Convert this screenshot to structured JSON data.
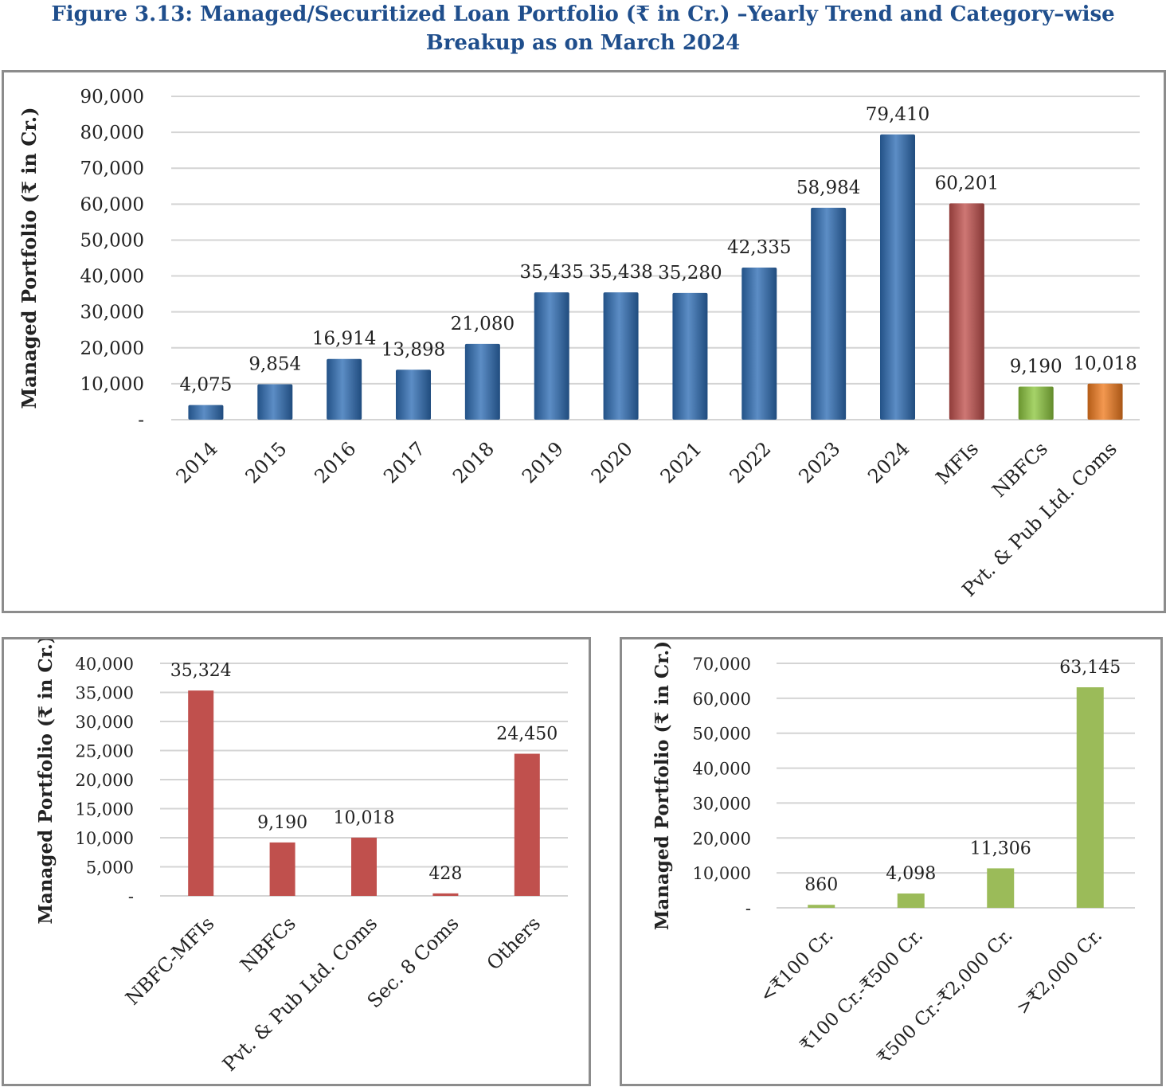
{
  "figure_title": "Figure 3.13: Managed/Securitized Loan Portfolio (₹ in Cr.) –Yearly Trend and Category–wise Breakup as on March 2024",
  "chart_data": [
    {
      "type": "bar",
      "ylabel": "Managed Portfolio (₹ in Cr.)",
      "ylim": [
        0,
        90000
      ],
      "yticks": [
        "-",
        "10,000",
        "20,000",
        "30,000",
        "40,000",
        "50,000",
        "60,000",
        "70,000",
        "80,000",
        "90,000"
      ],
      "categories": [
        "2014",
        "2015",
        "2016",
        "2017",
        "2018",
        "2019",
        "2020",
        "2021",
        "2022",
        "2023",
        "2024",
        "MFIs",
        "NBFCs",
        "Pvt. & Pub Ltd. Coms"
      ],
      "values": [
        4075,
        9854,
        16914,
        13898,
        21080,
        35435,
        35438,
        35280,
        42335,
        58984,
        79410,
        60201,
        9190,
        10018
      ],
      "value_labels": [
        "4,075",
        "9,854",
        "16,914",
        "13,898",
        "21,080",
        "35,435",
        "35,438",
        "35,280",
        "42,335",
        "58,984",
        "79,410",
        "60,201",
        "9,190",
        "10,018"
      ],
      "colors": [
        "#2e6db4",
        "#2e6db4",
        "#2e6db4",
        "#2e6db4",
        "#2e6db4",
        "#2e6db4",
        "#2e6db4",
        "#2e6db4",
        "#2e6db4",
        "#2e6db4",
        "#2e6db4",
        "#c0504d",
        "#8dc63f",
        "#f07b1f"
      ],
      "grid": true
    },
    {
      "type": "bar",
      "ylabel": "Managed Portfolio (₹ in Cr.)",
      "ylim": [
        0,
        40000
      ],
      "yticks": [
        "-",
        "5,000",
        "10,000",
        "15,000",
        "20,000",
        "25,000",
        "30,000",
        "35,000",
        "40,000"
      ],
      "categories": [
        "NBFC-MFIs",
        "NBFCs",
        "Pvt. & Pub Ltd. Coms",
        "Sec. 8 Coms",
        "Others"
      ],
      "values": [
        35324,
        9190,
        10018,
        428,
        24450
      ],
      "value_labels": [
        "35,324",
        "9,190",
        "10,018",
        "428",
        "24,450"
      ],
      "colors": [
        "#c0504d",
        "#c0504d",
        "#c0504d",
        "#c0504d",
        "#c0504d"
      ],
      "grid": true
    },
    {
      "type": "bar",
      "ylabel": "Managed Portfolio (₹ in Cr.)",
      "ylim": [
        0,
        70000
      ],
      "yticks": [
        "-",
        "10,000",
        "20,000",
        "30,000",
        "40,000",
        "50,000",
        "60,000",
        "70,000"
      ],
      "categories": [
        "<₹100 Cr.",
        "₹100 Cr.-₹500 Cr.",
        "₹500 Cr.-₹2,000 Cr.",
        ">₹2,000 Cr."
      ],
      "values": [
        860,
        4098,
        11306,
        63145
      ],
      "value_labels": [
        "860",
        "4,098",
        "11,306",
        "63,145"
      ],
      "colors": [
        "#9bbb59",
        "#9bbb59",
        "#9bbb59",
        "#9bbb59"
      ],
      "grid": true
    }
  ]
}
